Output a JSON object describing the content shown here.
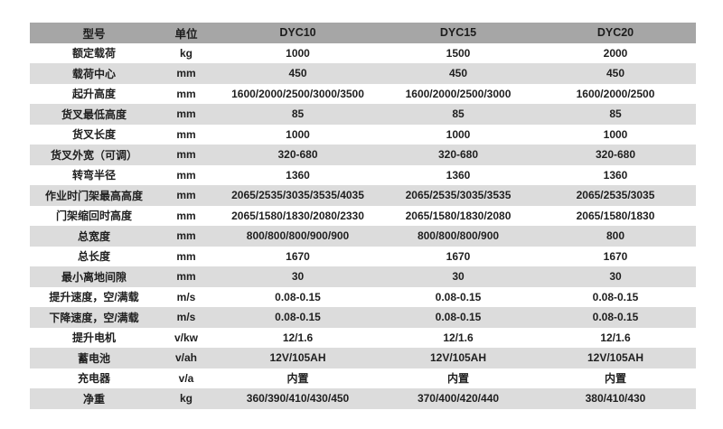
{
  "colors": {
    "header_bg": "#a6a6a6",
    "stripe_bg": "#dcdcdc",
    "row_bg": "#ffffff",
    "text": "#1f1f1f"
  },
  "table": {
    "headers": [
      "型号",
      "单位",
      "DYC10",
      "DYC15",
      "DYC20"
    ],
    "rows": [
      [
        "额定载荷",
        "kg",
        "1000",
        "1500",
        "2000"
      ],
      [
        "载荷中心",
        "mm",
        "450",
        "450",
        "450"
      ],
      [
        "起升高度",
        "mm",
        "1600/2000/2500/3000/3500",
        "1600/2000/2500/3000",
        "1600/2000/2500"
      ],
      [
        "货叉最低高度",
        "mm",
        "85",
        "85",
        "85"
      ],
      [
        "货叉长度",
        "mm",
        "1000",
        "1000",
        "1000"
      ],
      [
        "货叉外宽（可调）",
        "mm",
        "320-680",
        "320-680",
        "320-680"
      ],
      [
        "转弯半径",
        "mm",
        "1360",
        "1360",
        "1360"
      ],
      [
        "作业时门架最高高度",
        "mm",
        "2065/2535/3035/3535/4035",
        "2065/2535/3035/3535",
        "2065/2535/3035"
      ],
      [
        "门架缩回时高度",
        "mm",
        "2065/1580/1830/2080/2330",
        "2065/1580/1830/2080",
        "2065/1580/1830"
      ],
      [
        "总宽度",
        "mm",
        "800/800/800/900/900",
        "800/800/800/900",
        "800"
      ],
      [
        "总长度",
        "mm",
        "1670",
        "1670",
        "1670"
      ],
      [
        "最小离地间隙",
        "mm",
        "30",
        "30",
        "30"
      ],
      [
        "提升速度，空/满载",
        "m/s",
        "0.08-0.15",
        "0.08-0.15",
        "0.08-0.15"
      ],
      [
        "下降速度，空/满载",
        "m/s",
        "0.08-0.15",
        "0.08-0.15",
        "0.08-0.15"
      ],
      [
        "提升电机",
        "v/kw",
        "12/1.6",
        "12/1.6",
        "12/1.6"
      ],
      [
        "蓄电池",
        "v/ah",
        "12V/105AH",
        "12V/105AH",
        "12V/105AH"
      ],
      [
        "充电器",
        "v/a",
        "内置",
        "内置",
        "内置"
      ],
      [
        "净重",
        "kg",
        "360/390/410/430/450",
        "370/400/420/440",
        "380/410/430"
      ]
    ]
  }
}
